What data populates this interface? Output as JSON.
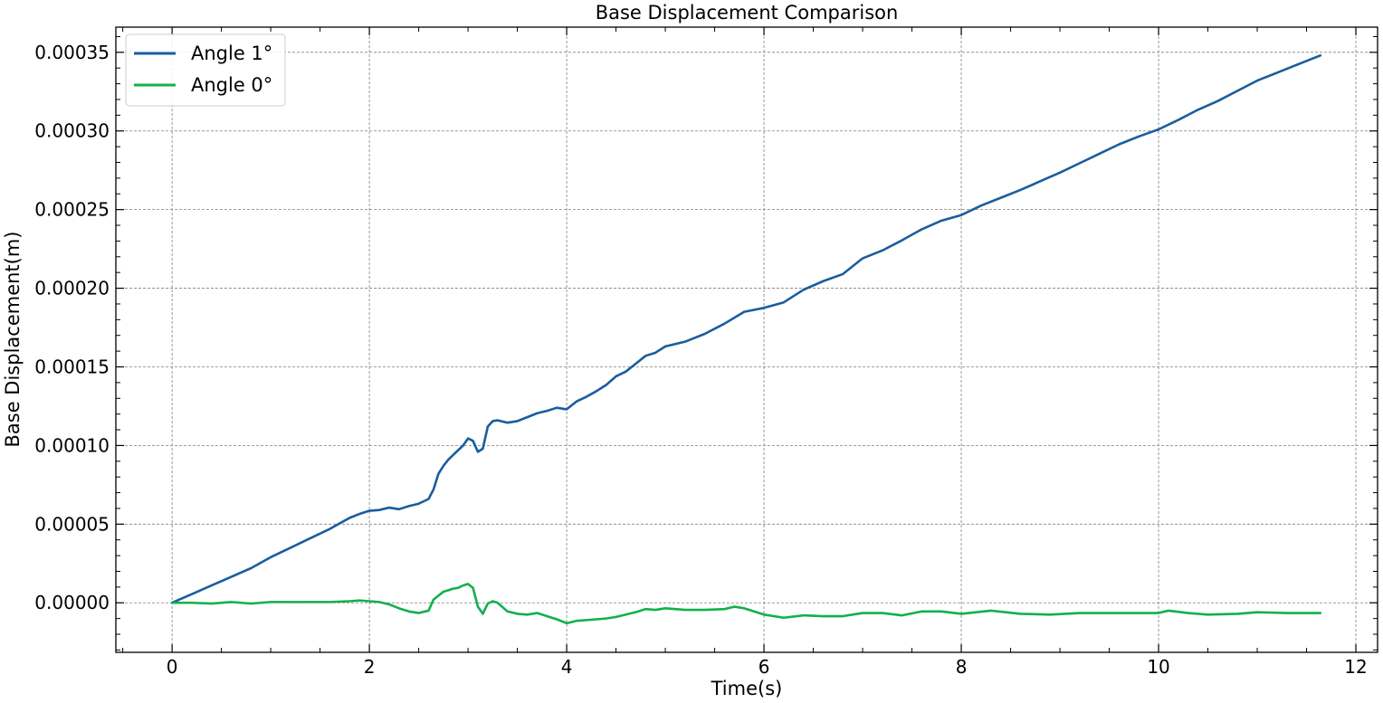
{
  "chart_data": {
    "type": "line",
    "title": "Base Displacement Comparison",
    "xlabel": "Time(s)",
    "ylabel": "Base Displacement(m)",
    "xlim": [
      -0.57,
      12.22
    ],
    "ylim": [
      -3.15e-05,
      0.000366
    ],
    "xticks": [
      0,
      2,
      4,
      6,
      8,
      10,
      12
    ],
    "yticks": [
      0.0,
      5e-05,
      0.0001,
      0.00015,
      0.0002,
      0.00025,
      0.0003,
      0.00035
    ],
    "ytick_labels": [
      "0.00000",
      "0.00005",
      "0.00010",
      "0.00015",
      "0.00020",
      "0.00025",
      "0.00030",
      "0.00035"
    ],
    "xtick_labels": [
      "0",
      "2",
      "4",
      "6",
      "8",
      "10",
      "12"
    ],
    "grid": true,
    "legend_position": "top-left",
    "series": [
      {
        "name": "Angle 1°",
        "color": "#1a5d9e",
        "x": [
          0,
          0.2,
          0.4,
          0.6,
          0.8,
          1.0,
          1.2,
          1.4,
          1.6,
          1.8,
          1.9,
          2.0,
          2.1,
          2.2,
          2.3,
          2.4,
          2.5,
          2.55,
          2.6,
          2.65,
          2.7,
          2.75,
          2.8,
          2.85,
          2.9,
          2.95,
          3.0,
          3.05,
          3.1,
          3.15,
          3.2,
          3.25,
          3.3,
          3.4,
          3.5,
          3.6,
          3.7,
          3.8,
          3.9,
          4.0,
          4.1,
          4.2,
          4.3,
          4.4,
          4.5,
          4.6,
          4.7,
          4.8,
          4.9,
          5.0,
          5.2,
          5.4,
          5.6,
          5.8,
          6.0,
          6.2,
          6.4,
          6.6,
          6.8,
          7.0,
          7.2,
          7.4,
          7.6,
          7.8,
          8.0,
          8.2,
          8.4,
          8.6,
          8.8,
          9.0,
          9.2,
          9.4,
          9.6,
          9.8,
          10.0,
          10.2,
          10.4,
          10.6,
          10.8,
          11.0,
          11.2,
          11.4,
          11.64
        ],
        "y": [
          0.0,
          5.5e-06,
          1.1e-05,
          1.65e-05,
          2.2e-05,
          2.9e-05,
          3.5e-05,
          4.1e-05,
          4.7e-05,
          5.4e-05,
          5.65e-05,
          5.85e-05,
          5.9e-05,
          6.05e-05,
          5.95e-05,
          6.15e-05,
          6.3e-05,
          6.45e-05,
          6.6e-05,
          7.2e-05,
          8.2e-05,
          8.7e-05,
          9.1e-05,
          9.4e-05,
          9.7e-05,
          0.0001,
          0.0001045,
          0.000103,
          9.6e-05,
          9.8e-05,
          0.000112,
          0.0001155,
          0.000116,
          0.0001145,
          0.0001155,
          0.000118,
          0.0001205,
          0.000122,
          0.000124,
          0.000123,
          0.000128,
          0.000131,
          0.0001345,
          0.0001385,
          0.000144,
          0.000147,
          0.000152,
          0.000157,
          0.000159,
          0.000163,
          0.000166,
          0.000171,
          0.0001775,
          0.000185,
          0.0001875,
          0.000191,
          0.000199,
          0.0002045,
          0.000209,
          0.000219,
          0.000224,
          0.0002305,
          0.0002375,
          0.000243,
          0.0002465,
          0.0002525,
          0.0002575,
          0.0002625,
          0.000268,
          0.0002735,
          0.0002795,
          0.0002855,
          0.0002915,
          0.0002965,
          0.000301,
          0.000307,
          0.0003135,
          0.000319,
          0.0003255,
          0.000332,
          0.000337,
          0.000342,
          0.000348
        ]
      },
      {
        "name": "Angle 0°",
        "color": "#12b04c",
        "x": [
          0,
          0.2,
          0.4,
          0.6,
          0.8,
          1.0,
          1.2,
          1.4,
          1.6,
          1.8,
          1.9,
          2.0,
          2.1,
          2.2,
          2.3,
          2.4,
          2.5,
          2.6,
          2.65,
          2.7,
          2.75,
          2.8,
          2.85,
          2.9,
          2.95,
          3.0,
          3.05,
          3.1,
          3.15,
          3.2,
          3.25,
          3.3,
          3.4,
          3.5,
          3.6,
          3.7,
          3.8,
          3.9,
          4.0,
          4.1,
          4.2,
          4.3,
          4.4,
          4.5,
          4.6,
          4.7,
          4.8,
          4.9,
          5.0,
          5.2,
          5.4,
          5.6,
          5.7,
          5.8,
          6.0,
          6.2,
          6.4,
          6.6,
          6.8,
          7.0,
          7.2,
          7.4,
          7.6,
          7.8,
          8.0,
          8.3,
          8.6,
          8.9,
          9.2,
          9.5,
          9.8,
          10.0,
          10.1,
          10.3,
          10.5,
          10.8,
          11.0,
          11.3,
          11.64
        ],
        "y": [
          0.0,
          0.0,
          -5e-07,
          5e-07,
          -5e-07,
          5e-07,
          5e-07,
          5e-07,
          5e-07,
          1e-06,
          1.5e-06,
          1e-06,
          5e-07,
          -1e-06,
          -3.5e-06,
          -5.5e-06,
          -6.5e-06,
          -5e-06,
          2e-06,
          4.5e-06,
          7e-06,
          8e-06,
          9e-06,
          9.5e-06,
          1.1e-05,
          1.2e-05,
          9.5e-06,
          -2.5e-06,
          -7e-06,
          -5e-07,
          1e-06,
          0.0,
          -5.5e-06,
          -7e-06,
          -7.5e-06,
          -6.5e-06,
          -8.5e-06,
          -1.05e-05,
          -1.3e-05,
          -1.15e-05,
          -1.1e-05,
          -1.05e-05,
          -1e-05,
          -9e-06,
          -7.5e-06,
          -6e-06,
          -4e-06,
          -4.5e-06,
          -3.5e-06,
          -4.5e-06,
          -4.5e-06,
          -4e-06,
          -2.5e-06,
          -3.5e-06,
          -7.5e-06,
          -9.5e-06,
          -8e-06,
          -8.5e-06,
          -8.5e-06,
          -6.5e-06,
          -6.5e-06,
          -8e-06,
          -5.5e-06,
          -5.5e-06,
          -7e-06,
          -5e-06,
          -7e-06,
          -7.5e-06,
          -6.5e-06,
          -6.5e-06,
          -6.5e-06,
          -6.5e-06,
          -5e-06,
          -6.5e-06,
          -7.5e-06,
          -7e-06,
          -6e-06,
          -6.5e-06,
          -6.5e-06
        ]
      }
    ]
  }
}
